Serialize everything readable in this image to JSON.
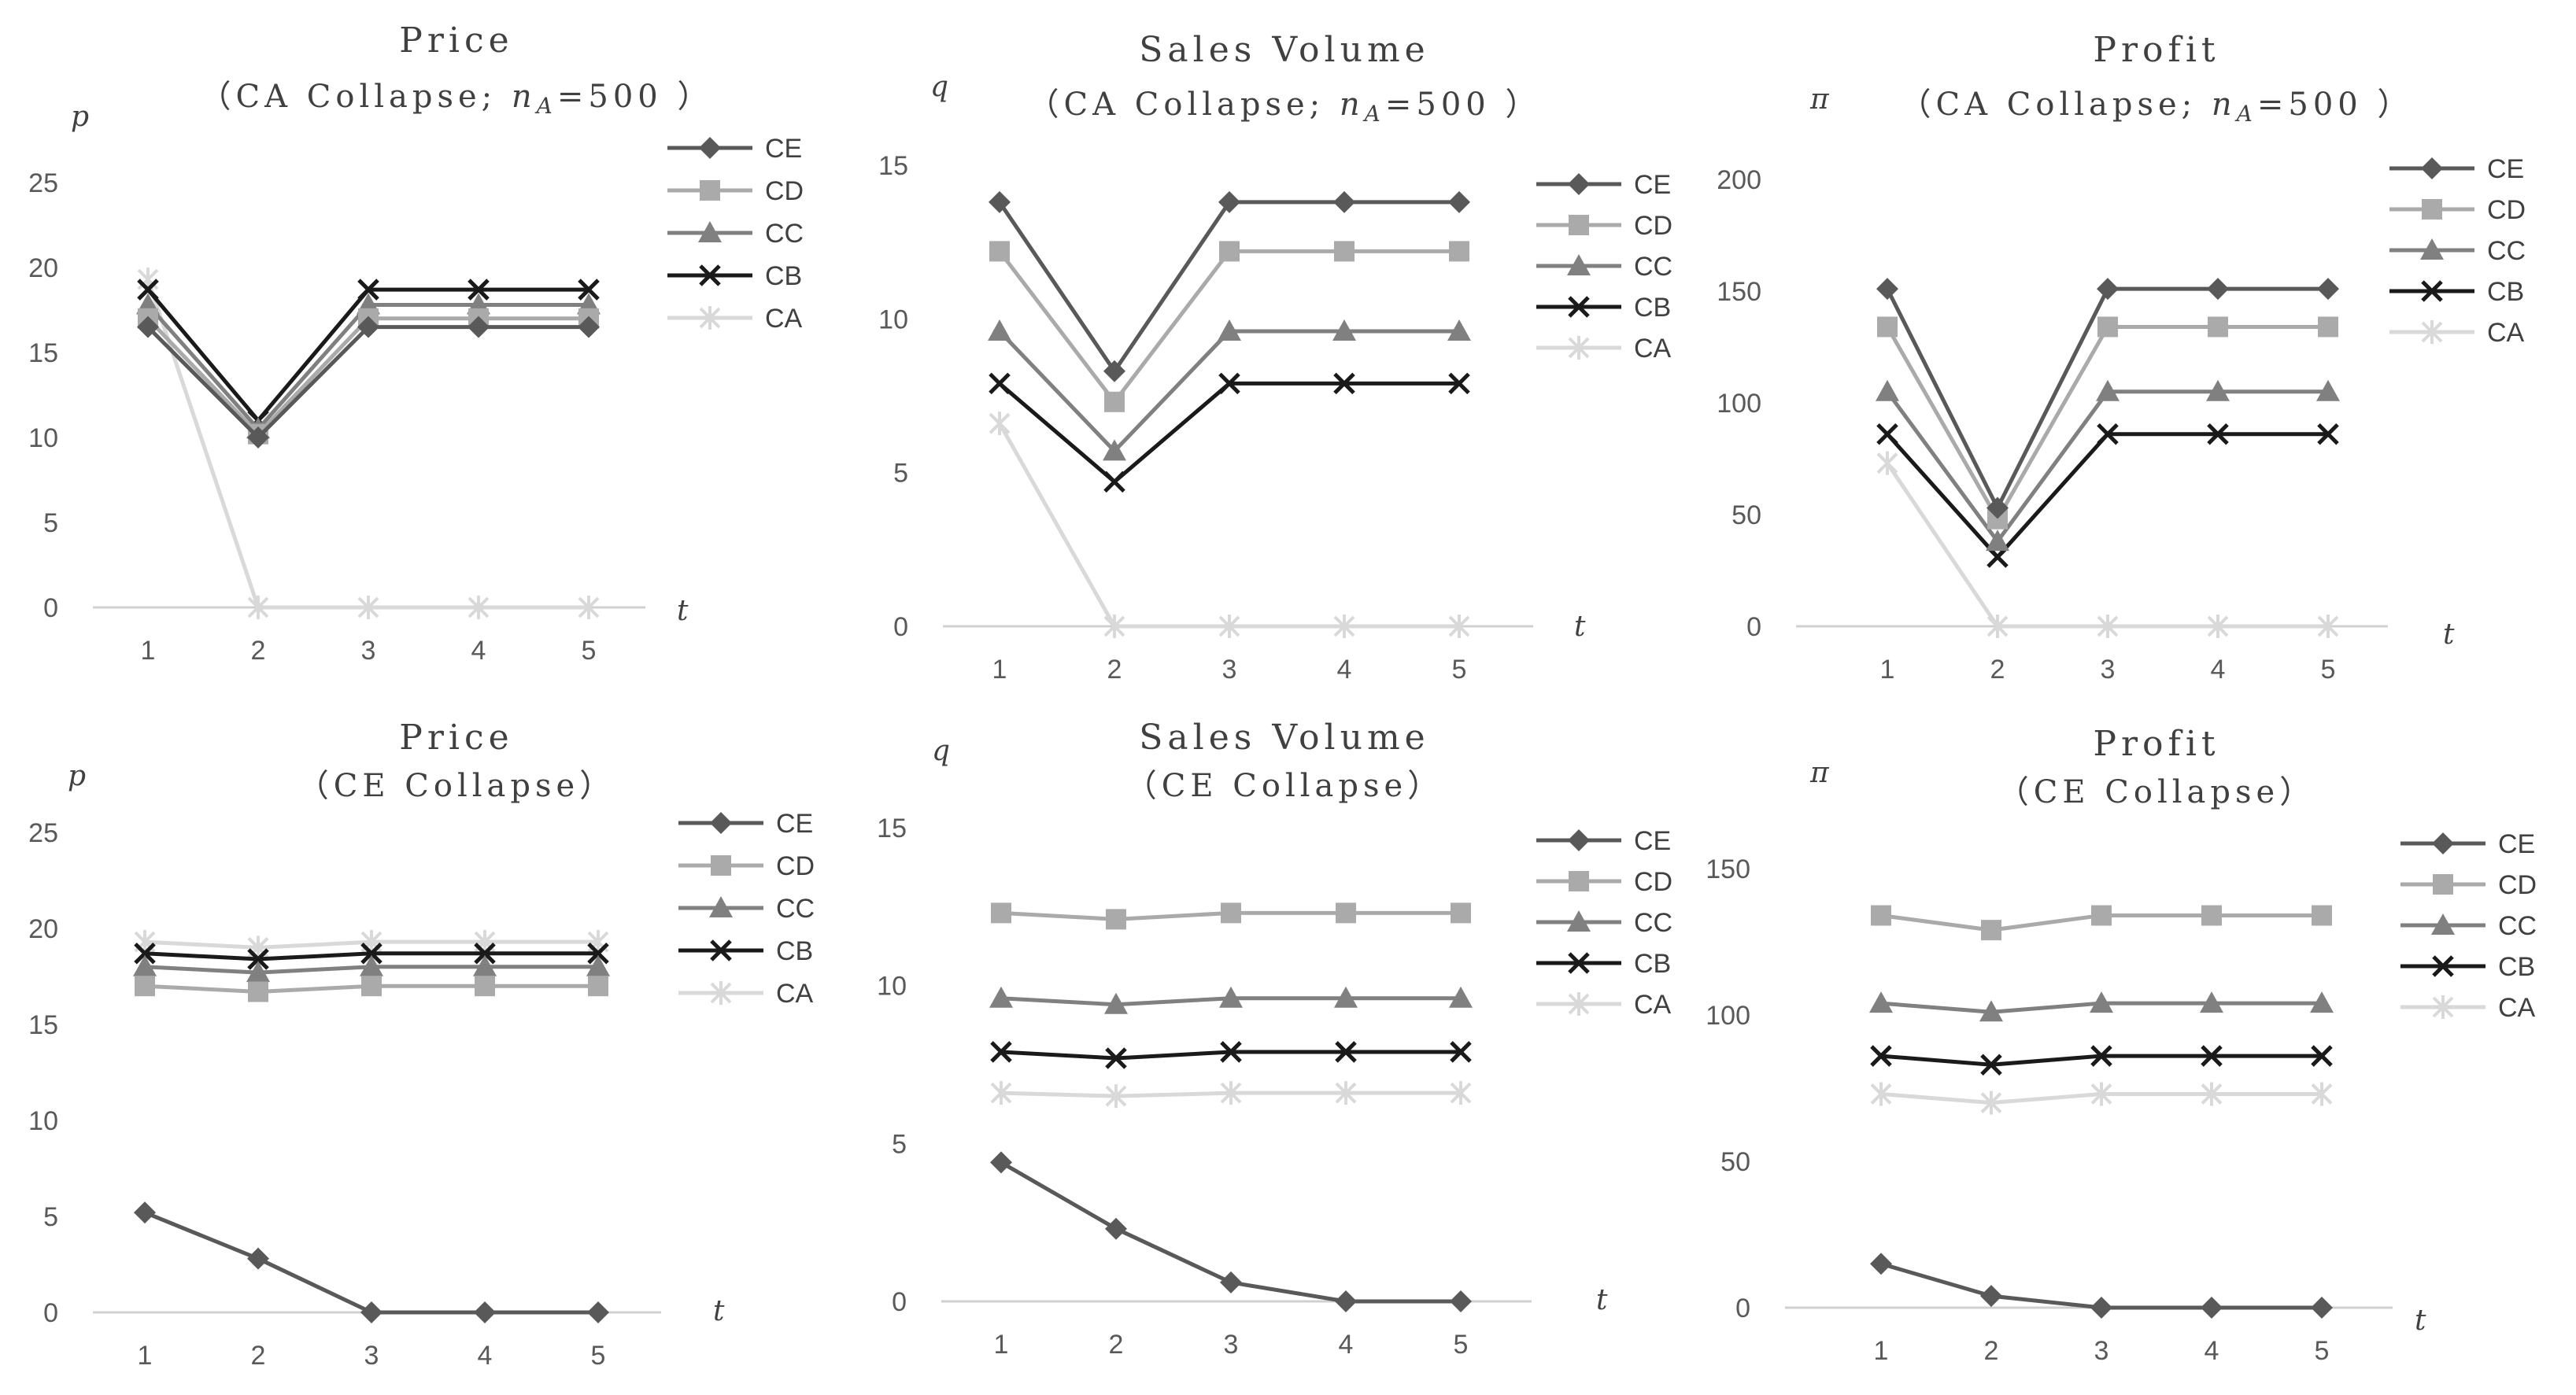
{
  "series_styles": {
    "CE": {
      "color": "#595959",
      "marker": "diamond"
    },
    "CD": {
      "color": "#aaaaaa",
      "marker": "square"
    },
    "CC": {
      "color": "#808080",
      "marker": "triangle"
    },
    "CB": {
      "color": "#1a1a1a",
      "marker": "x"
    },
    "CA": {
      "color": "#d9d9d9",
      "marker": "asterisk"
    }
  },
  "chart_data": [
    {
      "type": "line",
      "title": "Price",
      "subtitle_pre": "（CA Collapse; ",
      "subtitle_n": "n",
      "subtitle_sub": "A",
      "subtitle_post": "=500 ）",
      "ylabel": "p",
      "xlabel": "t",
      "x": [
        1,
        2,
        3,
        4,
        5
      ],
      "x_ticks": [
        "1",
        "2",
        "3",
        "4",
        "5"
      ],
      "ylim": [
        0,
        25
      ],
      "y_ticks": [
        0,
        5,
        10,
        15,
        20,
        25
      ],
      "series": [
        {
          "name": "CE",
          "values": [
            16.5,
            10.0,
            16.5,
            16.5,
            16.5
          ]
        },
        {
          "name": "CD",
          "values": [
            17.0,
            10.2,
            17.0,
            17.0,
            17.0
          ]
        },
        {
          "name": "CC",
          "values": [
            17.8,
            10.5,
            17.8,
            17.8,
            17.8
          ]
        },
        {
          "name": "CB",
          "values": [
            18.7,
            11.0,
            18.7,
            18.7,
            18.7
          ]
        },
        {
          "name": "CA",
          "values": [
            19.3,
            0,
            0,
            0,
            0
          ]
        }
      ]
    },
    {
      "type": "line",
      "title": "Sales Volume",
      "subtitle_pre": "（CA Collapse; ",
      "subtitle_n": "n",
      "subtitle_sub": "A",
      "subtitle_post": "=500 ）",
      "ylabel": "q",
      "xlabel": "t",
      "x": [
        1,
        2,
        3,
        4,
        5
      ],
      "x_ticks": [
        "1",
        "2",
        "3",
        "4",
        "5"
      ],
      "ylim": [
        0,
        15
      ],
      "y_ticks": [
        0,
        5,
        10,
        15
      ],
      "series": [
        {
          "name": "CE",
          "values": [
            13.8,
            8.3,
            13.8,
            13.8,
            13.8
          ]
        },
        {
          "name": "CD",
          "values": [
            12.2,
            7.3,
            12.2,
            12.2,
            12.2
          ]
        },
        {
          "name": "CC",
          "values": [
            9.6,
            5.7,
            9.6,
            9.6,
            9.6
          ]
        },
        {
          "name": "CB",
          "values": [
            7.9,
            4.7,
            7.9,
            7.9,
            7.9
          ]
        },
        {
          "name": "CA",
          "values": [
            6.6,
            0,
            0,
            0,
            0
          ]
        }
      ]
    },
    {
      "type": "line",
      "title": "Profit",
      "subtitle_pre": "（CA Collapse; ",
      "subtitle_n": "n",
      "subtitle_sub": "A",
      "subtitle_post": "=500 ）",
      "ylabel": "π",
      "xlabel": "t",
      "x": [
        1,
        2,
        3,
        4,
        5
      ],
      "x_ticks": [
        "1",
        "2",
        "3",
        "4",
        "5"
      ],
      "ylim": [
        0,
        200
      ],
      "y_ticks": [
        0,
        50,
        100,
        150,
        200
      ],
      "series": [
        {
          "name": "CE",
          "values": [
            151,
            53,
            151,
            151,
            151
          ]
        },
        {
          "name": "CD",
          "values": [
            134,
            48,
            134,
            134,
            134
          ]
        },
        {
          "name": "CC",
          "values": [
            105,
            38,
            105,
            105,
            105
          ]
        },
        {
          "name": "CB",
          "values": [
            86,
            31,
            86,
            86,
            86
          ]
        },
        {
          "name": "CA",
          "values": [
            73,
            0,
            0,
            0,
            0
          ]
        }
      ]
    },
    {
      "type": "line",
      "title": "Price",
      "subtitle_pre": "（CE Collapse）",
      "ylabel": "p",
      "xlabel": "t",
      "x": [
        1,
        2,
        3,
        4,
        5
      ],
      "x_ticks": [
        "1",
        "2",
        "3",
        "4",
        "5"
      ],
      "ylim": [
        0,
        25
      ],
      "y_ticks": [
        0,
        5,
        10,
        15,
        20,
        25
      ],
      "series": [
        {
          "name": "CE",
          "values": [
            5.2,
            2.8,
            0,
            0,
            0
          ]
        },
        {
          "name": "CD",
          "values": [
            17.0,
            16.7,
            17.0,
            17.0,
            17.0
          ]
        },
        {
          "name": "CC",
          "values": [
            18.0,
            17.7,
            18.0,
            18.0,
            18.0
          ]
        },
        {
          "name": "CB",
          "values": [
            18.7,
            18.4,
            18.7,
            18.7,
            18.7
          ]
        },
        {
          "name": "CA",
          "values": [
            19.3,
            19.0,
            19.3,
            19.3,
            19.3
          ]
        }
      ]
    },
    {
      "type": "line",
      "title": "Sales Volume",
      "subtitle_pre": "（CE Collapse）",
      "ylabel": "q",
      "xlabel": "t",
      "x": [
        1,
        2,
        3,
        4,
        5
      ],
      "x_ticks": [
        "1",
        "2",
        "3",
        "4",
        "5"
      ],
      "ylim": [
        0,
        15
      ],
      "y_ticks": [
        0,
        5,
        10,
        15
      ],
      "series": [
        {
          "name": "CE",
          "values": [
            4.4,
            2.3,
            0.6,
            0,
            0
          ]
        },
        {
          "name": "CD",
          "values": [
            12.3,
            12.1,
            12.3,
            12.3,
            12.3
          ]
        },
        {
          "name": "CC",
          "values": [
            9.6,
            9.4,
            9.6,
            9.6,
            9.6
          ]
        },
        {
          "name": "CB",
          "values": [
            7.9,
            7.7,
            7.9,
            7.9,
            7.9
          ]
        },
        {
          "name": "CA",
          "values": [
            6.6,
            6.5,
            6.6,
            6.6,
            6.6
          ]
        }
      ]
    },
    {
      "type": "line",
      "title": "Profit",
      "subtitle_pre": "（CE Collapse）",
      "ylabel": "π",
      "xlabel": "t",
      "x": [
        1,
        2,
        3,
        4,
        5
      ],
      "x_ticks": [
        "1",
        "2",
        "3",
        "4",
        "5"
      ],
      "ylim": [
        0,
        150
      ],
      "y_ticks": [
        0,
        50,
        100,
        150
      ],
      "series": [
        {
          "name": "CE",
          "values": [
            15,
            4,
            0,
            0,
            0
          ]
        },
        {
          "name": "CD",
          "values": [
            134,
            129,
            134,
            134,
            134
          ]
        },
        {
          "name": "CC",
          "values": [
            104,
            101,
            104,
            104,
            104
          ]
        },
        {
          "name": "CB",
          "values": [
            86,
            83,
            86,
            86,
            86
          ]
        },
        {
          "name": "CA",
          "values": [
            73,
            70,
            73,
            73,
            73
          ]
        }
      ]
    }
  ]
}
